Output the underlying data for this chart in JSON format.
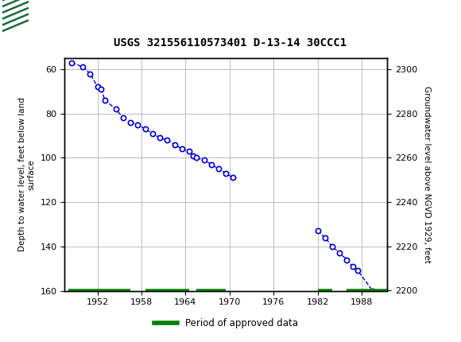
{
  "title": "USGS 321556110573401 D-13-14 30CCC1",
  "ylabel_left": "Depth to water level, feet below land\nsurface",
  "ylabel_right": "Groundwater level above NGVD 1929, feet",
  "header_color": "#1a6b3c",
  "ylim_left": [
    160,
    55
  ],
  "ylim_right": [
    2200,
    2305
  ],
  "xlim": [
    1947.5,
    1991.5
  ],
  "xticks": [
    1952,
    1958,
    1964,
    1970,
    1976,
    1982,
    1988
  ],
  "yticks_left": [
    60,
    80,
    100,
    120,
    140,
    160
  ],
  "yticks_right": [
    2200,
    2220,
    2240,
    2260,
    2280,
    2300
  ],
  "grid_color": "#bbbbbb",
  "line_color": "#0000cc",
  "marker_color": "#0000cc",
  "approved_color": "#008000",
  "segment1_x": [
    1948.5,
    1950.0,
    1951.0,
    1952.0,
    1952.5,
    1953.0,
    1954.5,
    1955.5
  ],
  "segment1_y": [
    57,
    59,
    62,
    68,
    69,
    74,
    78,
    82
  ],
  "segment2_x": [
    1956.5,
    1957.5,
    1958.5,
    1959.5,
    1960.5,
    1961.5,
    1962.5,
    1963.5,
    1964.5,
    1965.0,
    1965.5,
    1966.5,
    1967.5,
    1968.5,
    1969.5,
    1970.5
  ],
  "segment2_y": [
    84,
    85,
    87,
    89,
    91,
    92,
    94,
    96,
    97,
    99,
    100,
    101,
    103,
    105,
    107,
    109
  ],
  "segment3_x": [
    1982.0,
    1983.0,
    1984.0,
    1985.0,
    1986.0,
    1986.8,
    1987.5,
    1989.5
  ],
  "segment3_y": [
    133,
    136,
    140,
    143,
    146,
    149,
    151,
    160
  ],
  "approved_bar_segments": [
    [
      1948.0,
      1956.5
    ],
    [
      1958.5,
      1964.5
    ],
    [
      1965.5,
      1969.5
    ],
    [
      1982.0,
      1984.0
    ],
    [
      1986.0,
      1991.5
    ]
  ],
  "legend_label": "Period of approved data",
  "land_surface_y": 160
}
